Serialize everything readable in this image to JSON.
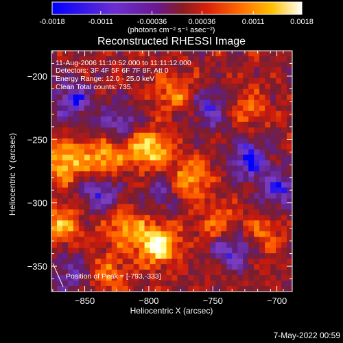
{
  "colorbar": {
    "ticks": [
      "-0.0018",
      "-0.0011",
      "-0.00036",
      "0.00036",
      "0.0011",
      "0.0018"
    ],
    "unit_label": "(photons cm⁻² s⁻¹ asec⁻²)",
    "range": [
      -0.0018,
      0.0018
    ]
  },
  "plot": {
    "title": "Reconstructed RHESSI Image",
    "info_lines": [
      "11-Aug-2006 11:10:52.000 to 11:11:12.000",
      "Detectors: 3F 4F 5F 6F 7F 8F, Att 0",
      "Energy Range: 12.0 - 25.0 keV",
      "Clean    Total counts: 735."
    ],
    "peak_text": "Position of Peak = [-793,-333]"
  },
  "footer": {
    "timestamp": "7-May-2022 00:59"
  },
  "chart_data": {
    "type": "heatmap",
    "title": "Reconstructed RHESSI Image",
    "xlabel": "Heliocentric X (arcsec)",
    "ylabel": "Heliocentric Y (arcsec)",
    "xlim": [
      -876,
      -688
    ],
    "ylim": [
      -370,
      -180
    ],
    "xticks": [
      -850,
      -800,
      -750,
      -700
    ],
    "yticks": [
      -200,
      -250,
      -300,
      -350
    ],
    "color_scale": {
      "min": -0.0018,
      "max": 0.0018,
      "stops": [
        "#0000ff",
        "#7b3dc0",
        "#5e1f86",
        "#7a1e2e",
        "#c81a0e",
        "#ff5a00",
        "#ffb000",
        "#ffff80",
        "#ffffff"
      ]
    },
    "hotspots": [
      {
        "x": -800,
        "y": -258,
        "value": 0.0016
      },
      {
        "x": -865,
        "y": -268,
        "value": 0.0014
      },
      {
        "x": -835,
        "y": -266,
        "value": 0.0013
      },
      {
        "x": -768,
        "y": -282,
        "value": 0.0012
      },
      {
        "x": -793,
        "y": -333,
        "value": 0.0018
      },
      {
        "x": -818,
        "y": -320,
        "value": 0.0011
      },
      {
        "x": -868,
        "y": -318,
        "value": 0.0011
      },
      {
        "x": -780,
        "y": -215,
        "value": 0.0009
      },
      {
        "x": -712,
        "y": -322,
        "value": 0.0008
      },
      {
        "x": -832,
        "y": -355,
        "value": 0.0008
      },
      {
        "x": -722,
        "y": -226,
        "value": 0.0007
      },
      {
        "x": -745,
        "y": -318,
        "value": 0.0009
      }
    ],
    "coldspots": [
      {
        "x": -860,
        "y": -220,
        "value": -0.0012
      },
      {
        "x": -722,
        "y": -265,
        "value": -0.0014
      },
      {
        "x": -735,
        "y": -335,
        "value": -0.0013
      },
      {
        "x": -838,
        "y": -292,
        "value": -0.0011
      },
      {
        "x": -752,
        "y": -225,
        "value": -0.0011
      },
      {
        "x": -822,
        "y": -235,
        "value": -0.0009
      },
      {
        "x": -790,
        "y": -292,
        "value": -0.0008
      },
      {
        "x": -700,
        "y": -290,
        "value": -0.0012
      },
      {
        "x": -860,
        "y": -355,
        "value": -0.0009
      }
    ],
    "peak": {
      "x": -793,
      "y": -333
    }
  }
}
